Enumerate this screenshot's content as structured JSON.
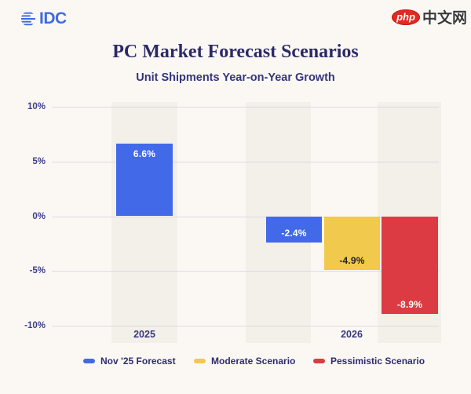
{
  "header": {
    "logo_text": "IDC",
    "logo_color": "#3D6BE3",
    "watermark": {
      "badge_text": "php",
      "badge_color": "#E02A22",
      "site_text": "中文网"
    }
  },
  "chart_data": {
    "type": "bar",
    "title": "PC Market Forecast Scenarios",
    "subtitle": "Unit Shipments Year-on-Year Growth",
    "categories": [
      "2025",
      "2026"
    ],
    "series": [
      {
        "name": "Nov '25 Forecast",
        "color": "#4169E8",
        "values": [
          6.6,
          -2.4
        ]
      },
      {
        "name": "Moderate Scenario",
        "color": "#F0C94D",
        "values": [
          null,
          -4.9
        ]
      },
      {
        "name": "Pessimistic Scenario",
        "color": "#DC3B43",
        "values": [
          null,
          -8.9
        ]
      }
    ],
    "bars": [
      {
        "category": "2025",
        "series": "Nov '25 Forecast",
        "value": 6.6,
        "label": "6.6%",
        "color": "#4169E8",
        "label_color": "#FFFFFF"
      },
      {
        "category": "2026",
        "series": "Nov '25 Forecast",
        "value": -2.4,
        "label": "-2.4%",
        "color": "#4169E8",
        "label_color": "#FFFFFF"
      },
      {
        "category": "2026",
        "series": "Moderate Scenario",
        "value": -4.9,
        "label": "-4.9%",
        "color": "#F0C94D",
        "label_color": "#1F1F1F"
      },
      {
        "category": "2026",
        "series": "Pessimistic Scenario",
        "value": -8.9,
        "label": "-8.9%",
        "color": "#DC3B43",
        "label_color": "#FFFFFF"
      }
    ],
    "y_ticks": [
      {
        "value": 10,
        "label": "10%"
      },
      {
        "value": 5,
        "label": "5%"
      },
      {
        "value": 0,
        "label": "0%"
      },
      {
        "value": -5,
        "label": "-5%"
      },
      {
        "value": -10,
        "label": "-10%"
      }
    ],
    "ylim": [
      -10,
      10
    ],
    "grid": true,
    "legend_position": "bottom",
    "background_color": "#FBF8F4",
    "band_color": "#F3EFE9",
    "gridline_color": "#DCD9E9"
  }
}
